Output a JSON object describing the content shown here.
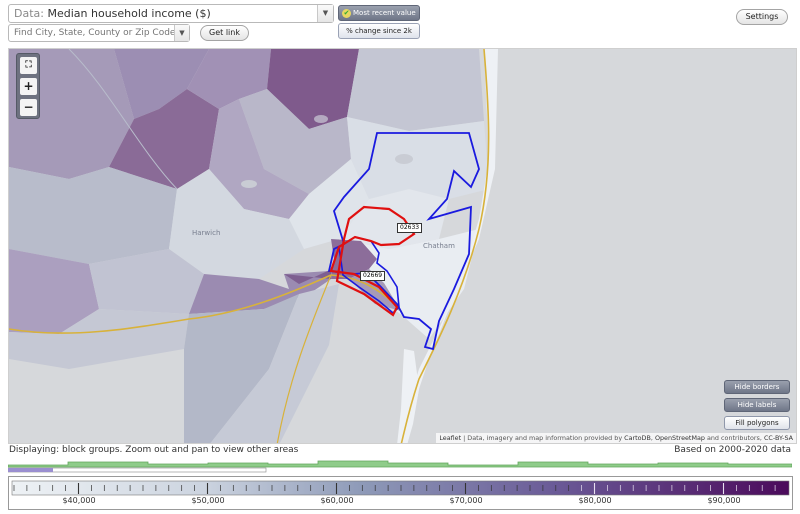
{
  "toolbar": {
    "data_prefix": "Data:",
    "data_value": "Median household income ($)",
    "search_placeholder": "Find City, State, County or Zip Code",
    "get_link_label": "Get link",
    "most_recent_label": "Most recent value",
    "change_label": "% change since 2k",
    "settings_label": "Settings"
  },
  "map": {
    "place_labels": [
      "Harwich",
      "Chatham"
    ],
    "zip_labels": [
      "02633",
      "02669"
    ],
    "buttons": {
      "hide_borders": "Hide borders",
      "hide_labels": "Hide labels",
      "fill_polygons": "Fill polygons"
    },
    "attribution": {
      "leaflet": "Leaflet",
      "text1": " | Data, imagery and map information provided by ",
      "cartodb": "CartoDB",
      "sep": ", ",
      "osm": "OpenStreetMap",
      "text2": " and contributors, ",
      "license": "CC-BY-SA"
    }
  },
  "status": {
    "displaying": "Displaying: block groups. Zoom out and pan to view other areas",
    "based_on": "Based on 2000-2020 data"
  },
  "legend": {
    "tick_labels": [
      "$40,000",
      "$50,000",
      "$60,000",
      "$70,000",
      "$80,000",
      "$90,000"
    ],
    "gradient_start": "#eef2f5",
    "gradient_end": "#4b0a5b"
  },
  "colors": {
    "zip_02633_border": "#e01010",
    "zip_02669_border": "#1a1adf",
    "coastline": "#d8b23a",
    "histogram_bar": "#8fcc8a",
    "histogram_range": "#9a8fd0"
  },
  "icons": {
    "zoom_fit": "fit-screen-icon",
    "zoom_in": "plus-icon",
    "zoom_out": "minus-icon",
    "checkmark": "check-icon",
    "dropdown": "chevron-down-icon"
  }
}
